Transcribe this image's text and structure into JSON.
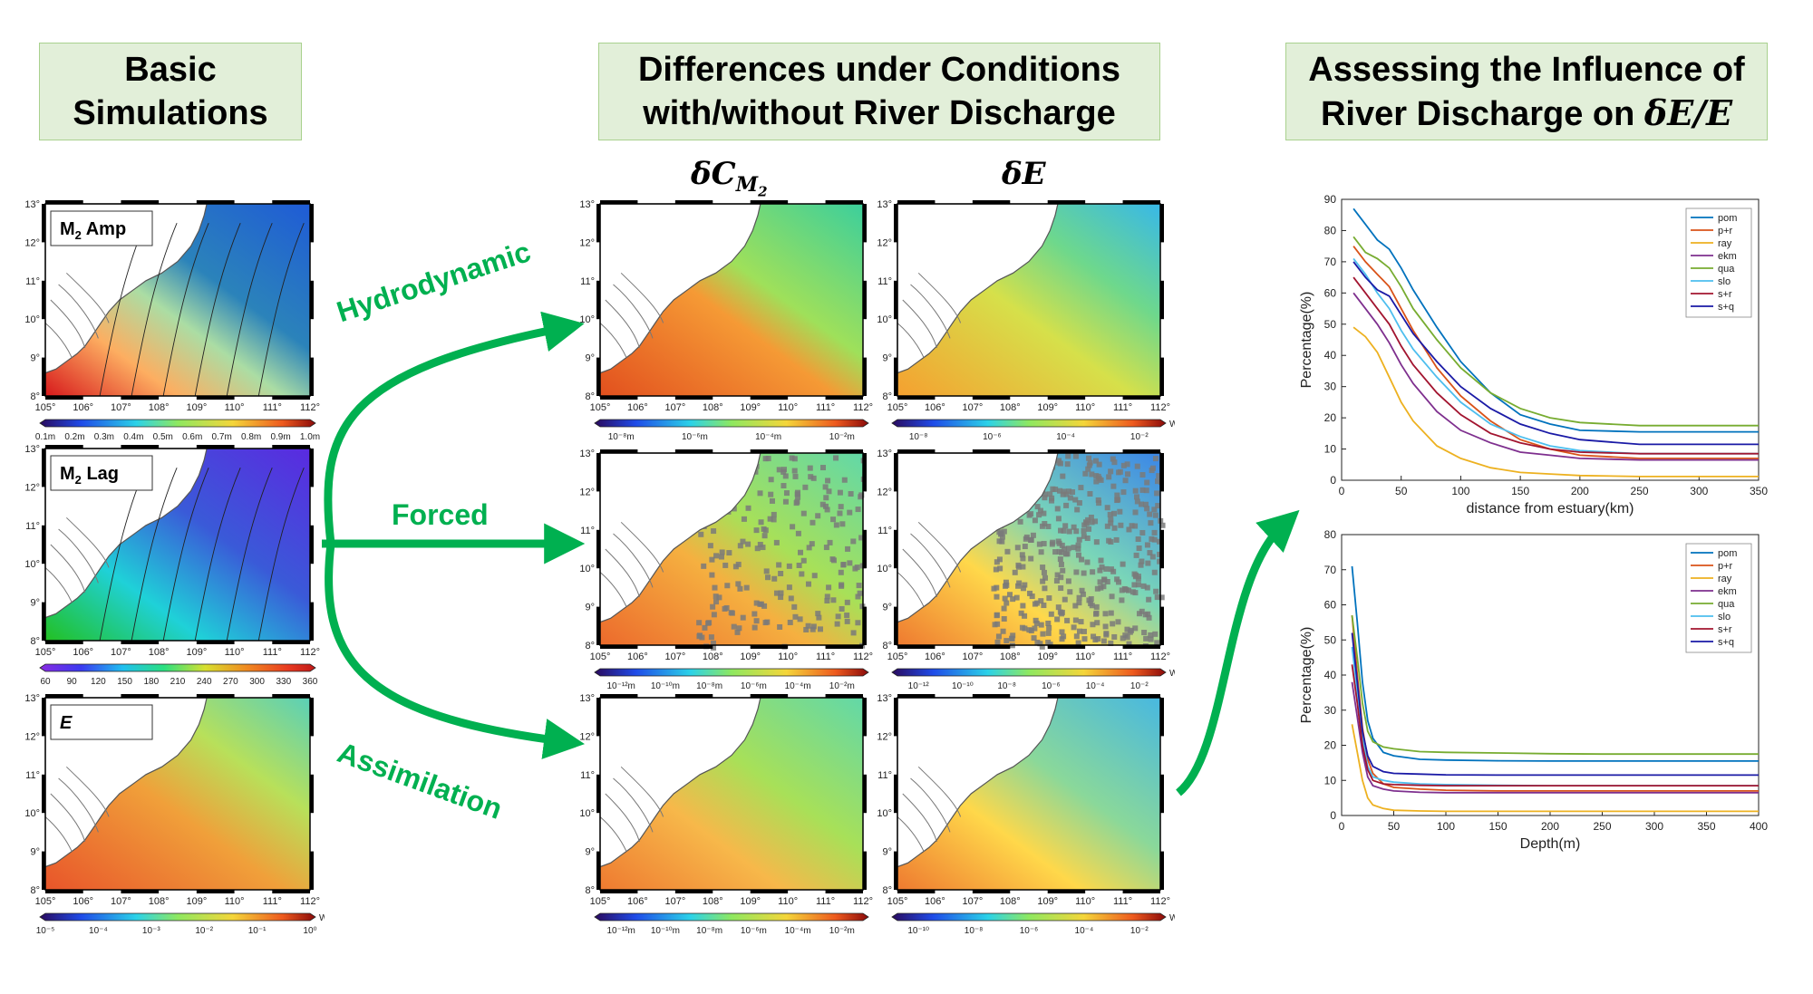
{
  "headers": {
    "basic": [
      "Basic",
      "Simulations"
    ],
    "differences": [
      "Differences under Conditions",
      "with/without River Discharge"
    ],
    "assessing_line1": "Assessing the Influence of",
    "assessing_line2": "River Discharge on",
    "assessing_math": "δE/E"
  },
  "columns": {
    "delta_c": "δC",
    "delta_c_sub": "M",
    "delta_c_subsub": "2",
    "delta_e": "δE"
  },
  "arrows": {
    "hydrodynamic": "Hydrodynamic",
    "forced": "Forced",
    "assimilation": "Assimilation"
  },
  "map_axes": {
    "lon": [
      "105°",
      "106°",
      "107°",
      "108°",
      "109°",
      "110°",
      "111°",
      "112°"
    ],
    "lat": [
      "13°",
      "12°",
      "11°",
      "10°",
      "9°",
      "8°"
    ]
  },
  "basic_panels": [
    {
      "label": "M",
      "sub": "2",
      "suffix": " Amp",
      "cbar_ticks": [
        "0.1m",
        "0.2m",
        "0.3m",
        "0.4m",
        "0.5m",
        "0.6m",
        "0.7m",
        "0.8m",
        "0.9m",
        "1.0m"
      ],
      "cbar_unit": ""
    },
    {
      "label": "M",
      "sub": "2",
      "suffix": " Lag",
      "cbar_ticks": [
        "60",
        "90",
        "120",
        "150",
        "180",
        "210",
        "240",
        "270",
        "300",
        "330",
        "360"
      ],
      "cbar_unit": ""
    },
    {
      "label": "E",
      "sub": "",
      "suffix": "",
      "cbar_ticks": [
        "10⁻⁵",
        "10⁻⁴",
        "10⁻³",
        "10⁻²",
        "10⁻¹",
        "10⁰"
      ],
      "cbar_unit": "W/m²"
    }
  ],
  "diff_cbars": [
    {
      "ticks": [
        "10⁻⁸m",
        "10⁻⁶m",
        "10⁻⁴m",
        "10⁻²m"
      ],
      "unit": ""
    },
    {
      "ticks": [
        "10⁻⁸",
        "10⁻⁶",
        "10⁻⁴",
        "10⁻²"
      ],
      "unit": "W/m²"
    },
    {
      "ticks": [
        "10⁻¹²m",
        "10⁻¹⁰m",
        "10⁻⁸m",
        "10⁻⁶m",
        "10⁻⁴m",
        "10⁻²m"
      ],
      "unit": ""
    },
    {
      "ticks": [
        "10⁻¹²",
        "10⁻¹⁰",
        "10⁻⁸",
        "10⁻⁶",
        "10⁻⁴",
        "10⁻²"
      ],
      "unit": "W/m²"
    },
    {
      "ticks": [
        "10⁻¹²m",
        "10⁻¹⁰m",
        "10⁻⁸m",
        "10⁻⁶m",
        "10⁻⁴m",
        "10⁻²m"
      ],
      "unit": ""
    },
    {
      "ticks": [
        "10⁻¹⁰",
        "10⁻⁸",
        "10⁻⁶",
        "10⁻⁴",
        "10⁻²"
      ],
      "unit": "W/m²"
    }
  ],
  "colors": {
    "arrow": "#00b050",
    "header_bg": "#e2efd9",
    "header_border": "#a9d18e",
    "land": "#ffffff",
    "coast": "#555555"
  },
  "chart_data": [
    {
      "type": "line",
      "xlabel": "distance from estuary(km)",
      "ylabel": "Percentage(%)",
      "xlim": [
        0,
        350
      ],
      "ylim": [
        0,
        90
      ],
      "xticks": [
        0,
        50,
        100,
        150,
        200,
        250,
        300,
        350
      ],
      "yticks": [
        0,
        10,
        20,
        30,
        40,
        50,
        60,
        70,
        80,
        90
      ],
      "legend_position": "top-right",
      "x": [
        10,
        20,
        30,
        40,
        50,
        60,
        80,
        100,
        125,
        150,
        175,
        200,
        250,
        300,
        350
      ],
      "series": [
        {
          "name": "pom",
          "color": "#0072bd",
          "values": [
            87,
            82,
            77,
            74,
            68,
            61,
            49,
            38,
            28,
            21,
            18,
            16,
            15.5,
            15.5,
            15.5
          ]
        },
        {
          "name": "p+r",
          "color": "#d95319",
          "values": [
            75,
            70,
            66,
            62,
            55,
            48,
            36,
            27,
            19,
            13,
            10,
            8,
            7,
            7,
            7
          ]
        },
        {
          "name": "ray",
          "color": "#edb120",
          "values": [
            49,
            46,
            41,
            33,
            25,
            19,
            11,
            7,
            4,
            2.5,
            2,
            1.5,
            1.2,
            1.2,
            1.2
          ]
        },
        {
          "name": "ekm",
          "color": "#7e2f8e",
          "values": [
            60,
            55,
            50,
            44,
            37,
            31,
            22,
            16,
            12,
            9,
            8,
            7,
            6.5,
            6.5,
            6.5
          ]
        },
        {
          "name": "qua",
          "color": "#77ac30",
          "values": [
            78,
            73,
            71,
            68,
            62,
            55,
            45,
            36,
            28,
            23,
            20,
            18.5,
            17.5,
            17.5,
            17.5
          ]
        },
        {
          "name": "slo",
          "color": "#4dbeee",
          "values": [
            71,
            66,
            60,
            55,
            48,
            42,
            33,
            25,
            18,
            14,
            11,
            9.5,
            8.5,
            8.5,
            8.5
          ]
        },
        {
          "name": "s+r",
          "color": "#a2142f",
          "values": [
            65,
            60,
            55,
            50,
            43,
            37,
            28,
            21,
            15,
            12,
            10,
            9,
            8.5,
            8.5,
            8.5
          ]
        },
        {
          "name": "s+q",
          "color": "#1a1aa6",
          "values": [
            70,
            65,
            61,
            59,
            53,
            47,
            38,
            30,
            23,
            18,
            15,
            13,
            11.5,
            11.5,
            11.5
          ]
        }
      ]
    },
    {
      "type": "line",
      "xlabel": "Depth(m)",
      "ylabel": "Percentage(%)",
      "xlim": [
        0,
        400
      ],
      "ylim": [
        0,
        80
      ],
      "xticks": [
        0,
        50,
        100,
        150,
        200,
        250,
        300,
        350,
        400
      ],
      "yticks": [
        0,
        10,
        20,
        30,
        40,
        50,
        60,
        70,
        80
      ],
      "legend_position": "top-right",
      "x": [
        10,
        15,
        20,
        25,
        30,
        40,
        50,
        75,
        100,
        150,
        200,
        250,
        300,
        350,
        400
      ],
      "series": [
        {
          "name": "pom",
          "color": "#0072bd",
          "values": [
            71,
            55,
            38,
            27,
            22,
            18,
            17,
            16,
            15.8,
            15.6,
            15.5,
            15.5,
            15.5,
            15.5,
            15.5
          ]
        },
        {
          "name": "p+r",
          "color": "#d95319",
          "values": [
            57,
            40,
            25,
            16,
            12,
            9,
            8,
            7.5,
            7.2,
            7,
            7,
            7,
            7,
            7,
            7
          ]
        },
        {
          "name": "ray",
          "color": "#edb120",
          "values": [
            26,
            18,
            10,
            5,
            3,
            2,
            1.5,
            1.3,
            1.2,
            1.2,
            1.2,
            1.2,
            1.2,
            1.2,
            1.2
          ]
        },
        {
          "name": "ekm",
          "color": "#7e2f8e",
          "values": [
            38,
            28,
            18,
            11,
            8.5,
            7.5,
            7,
            6.6,
            6.5,
            6.5,
            6.5,
            6.5,
            6.5,
            6.5,
            6.5
          ]
        },
        {
          "name": "qua",
          "color": "#77ac30",
          "values": [
            57,
            45,
            32,
            24,
            21,
            19.5,
            19,
            18.2,
            18,
            17.8,
            17.6,
            17.5,
            17.5,
            17.5,
            17.5
          ]
        },
        {
          "name": "slo",
          "color": "#4dbeee",
          "values": [
            48,
            35,
            22,
            14,
            11,
            10,
            9.5,
            9,
            8.8,
            8.6,
            8.5,
            8.5,
            8.5,
            8.5,
            8.5
          ]
        },
        {
          "name": "s+r",
          "color": "#a2142f",
          "values": [
            43,
            32,
            20,
            13,
            10,
            9,
            8.8,
            8.6,
            8.5,
            8.5,
            8.5,
            8.5,
            8.5,
            8.5,
            8.5
          ]
        },
        {
          "name": "s+q",
          "color": "#1a1aa6",
          "values": [
            52,
            38,
            24,
            17,
            14,
            12.5,
            12,
            11.8,
            11.6,
            11.5,
            11.5,
            11.5,
            11.5,
            11.5,
            11.5
          ]
        }
      ]
    }
  ]
}
